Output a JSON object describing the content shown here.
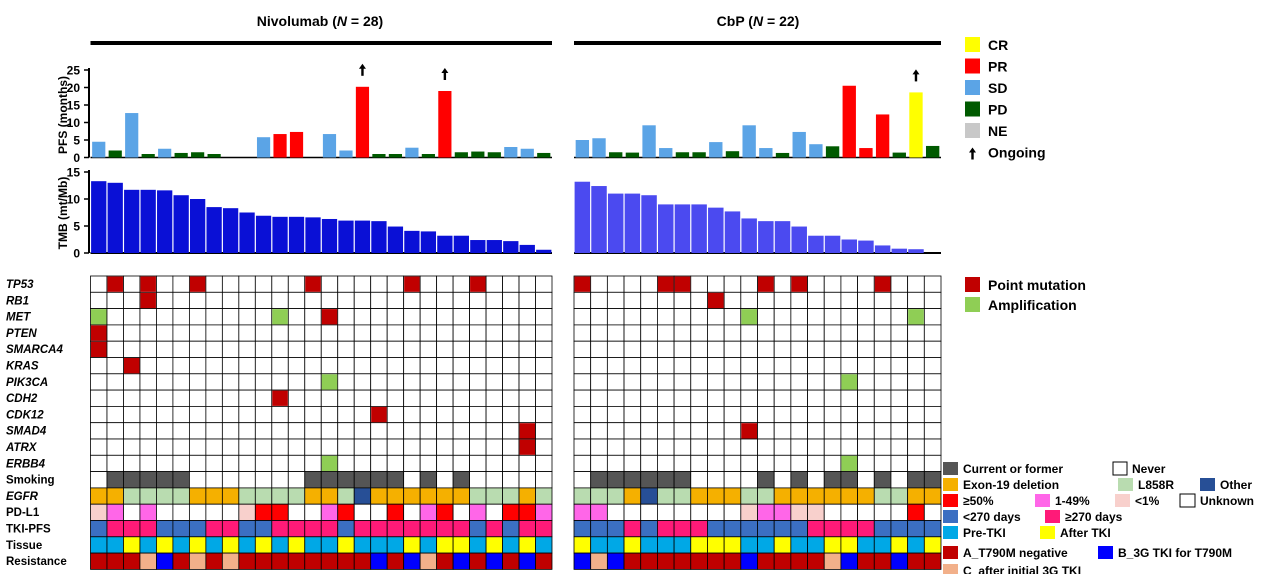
{
  "chart_data": {
    "type": "bar",
    "groups": [
      {
        "label_prefix": "Nivolumab (",
        "n_label": "N",
        "n_value": " = 28)",
        "n": 28
      },
      {
        "label_prefix": "CbP (",
        "n_label": "N",
        "n_value": " = 22)",
        "n": 22
      }
    ],
    "pfs_axis": {
      "label": "PFS (months)",
      "ticks": [
        "0",
        "5",
        "10",
        "15",
        "20",
        "25"
      ],
      "ylim": [
        0,
        25
      ]
    },
    "tmb_axis": {
      "label": "TMB (mt/Mb)",
      "ticks": [
        "0",
        "5",
        "10",
        "15"
      ],
      "ylim": [
        0,
        15
      ]
    },
    "pfs": [
      [
        4.5,
        2,
        12.7,
        1,
        2.5,
        1.3,
        1.5,
        1,
        0,
        0,
        5.8,
        6.7,
        7.3,
        0,
        6.7,
        2,
        20.2,
        1,
        1,
        2.8,
        1,
        19,
        1.5,
        1.7,
        1.5,
        3,
        2.5,
        1.3
      ],
      [
        5,
        5.5,
        1.5,
        1.4,
        9.2,
        2.7,
        1.5,
        1.5,
        4.4,
        1.8,
        9.2,
        2.7,
        1.3,
        7.3,
        3.8,
        3.2,
        20.5,
        2.7,
        12.3,
        1.4,
        18.6,
        3.3
      ]
    ],
    "response": [
      [
        "SD",
        "PD",
        "SD",
        "PD",
        "SD",
        "PD",
        "PD",
        "PD",
        "NE",
        "NE",
        "SD",
        "PR",
        "PR",
        "NE",
        "SD",
        "SD",
        "PR",
        "PD",
        "PD",
        "SD",
        "PD",
        "PR",
        "PD",
        "PD",
        "PD",
        "SD",
        "SD",
        "PD"
      ],
      [
        "SD",
        "SD",
        "PD",
        "PD",
        "SD",
        "SD",
        "PD",
        "PD",
        "SD",
        "PD",
        "SD",
        "SD",
        "PD",
        "SD",
        "SD",
        "PD",
        "PR",
        "PR",
        "PR",
        "PD",
        "CR",
        "PD"
      ]
    ],
    "ongoing": [
      [
        16,
        21
      ],
      [
        20
      ]
    ],
    "tmb": [
      [
        13.3,
        13,
        11.7,
        11.7,
        11.6,
        10.7,
        10,
        8.5,
        8.3,
        7.5,
        6.9,
        6.7,
        6.7,
        6.6,
        6.3,
        6,
        6,
        5.9,
        4.9,
        4.1,
        4,
        3.2,
        3.2,
        2.4,
        2.4,
        2.2,
        1.5,
        0.6
      ],
      [
        13.2,
        12.4,
        11,
        11,
        10.7,
        9,
        9,
        9,
        8.4,
        7.7,
        6.4,
        5.9,
        5.9,
        4.9,
        3.2,
        3.2,
        2.5,
        2.3,
        1.4,
        0.8,
        0.7,
        0
      ]
    ],
    "gene_rows": [
      "TP53",
      "RB1",
      "MET",
      "PTEN",
      "SMARCA4",
      "KRAS",
      "PIK3CA",
      "CDH2",
      "CDK12",
      "SMAD4",
      "ATRX",
      "ERBB4"
    ],
    "mutations": [
      [
        [
          0,
          1,
          "P"
        ],
        [
          0,
          3,
          "P"
        ],
        [
          0,
          6,
          "P"
        ],
        [
          0,
          13,
          "P"
        ],
        [
          0,
          19,
          "P"
        ],
        [
          0,
          23,
          "P"
        ],
        [
          1,
          3,
          "P"
        ],
        [
          2,
          0,
          "A"
        ],
        [
          2,
          11,
          "A"
        ],
        [
          2,
          14,
          "P"
        ],
        [
          3,
          0,
          "P"
        ],
        [
          4,
          0,
          "P"
        ],
        [
          5,
          2,
          "P"
        ],
        [
          6,
          14,
          "A"
        ],
        [
          7,
          11,
          "P"
        ],
        [
          8,
          17,
          "P"
        ],
        [
          9,
          26,
          "P"
        ],
        [
          10,
          26,
          "P"
        ],
        [
          11,
          14,
          "A"
        ]
      ],
      [
        [
          0,
          0,
          "P"
        ],
        [
          0,
          5,
          "P"
        ],
        [
          0,
          6,
          "P"
        ],
        [
          0,
          11,
          "P"
        ],
        [
          0,
          13,
          "P"
        ],
        [
          0,
          18,
          "P"
        ],
        [
          1,
          8,
          "P"
        ],
        [
          2,
          10,
          "A"
        ],
        [
          2,
          20,
          "A"
        ],
        [
          6,
          16,
          "A"
        ],
        [
          9,
          10,
          "P"
        ],
        [
          11,
          16,
          "A"
        ]
      ]
    ],
    "annotation_rows": [
      "Smoking",
      "EGFR",
      "PD-L1",
      "TKI-PFS",
      "Tissue",
      "Resistance"
    ],
    "annotations": [
      {
        "smoking": "NCCCCCNNNNNNNCCCCCCNCNCNNNNN",
        "egfr": "EELLLLEEELLLLEELOEEEEEELLLEL",
        "pdl1": "LMUMUUUUULHHUUMHUUHUMHUMUHHM",
        "tki": "ABBBAAABBAABBBBABBBBBBBABABB",
        "tissue": "PPAPAPAPAPAPAPPAPPPAPAAPAPAP",
        "resistance": "AAACBACACAAAAAAAABABCABABABA"
      },
      {
        "smoking": "NCCCCCCNNNNCNCNCCNCNCC",
        "egfr": "LLLEOLLEEELLEEEEEELLEE",
        "pdl1": "MMUUUUUUUULMMLLUUUUUHU",
        "tki": "AAABABBBAAAAAABBBBAAAA",
        "tissue": "APPAPPPAAAPPAPPAAPPAPA",
        "resistance": "BCBAAAAAAABAAAACBAABAA"
      }
    ],
    "colors": {
      "CR": "#ffff00",
      "PR": "#ff0000",
      "SD": "#5ba4e6",
      "PD": "#005a00",
      "NE": "#c8c8c8",
      "nivo_tmb": "#0a10d6",
      "cbp_tmb": "#4b4af0",
      "point": "#c00000",
      "amp": "#8fce55",
      "smoke_current": "#555555",
      "never": "#ffffff",
      "egfr_exon19": "#f5b000",
      "egfr_l858r": "#b9dcb0",
      "egfr_other": "#274f96",
      "pdl1_hi": "#ff0000",
      "pdl1_mid": "#ff66e8",
      "pdl1_low": "#f8d0cc",
      "pdl1_unknown": "#ffffff",
      "tki_lt270": "#3b6fc2",
      "tki_gt270": "#ff1a78",
      "tissue_pre": "#00a8e6",
      "tissue_after": "#ffff00",
      "res_a": "#c00000",
      "res_b": "#0000ff",
      "res_c": "#f2b08a"
    },
    "legend_top": [
      {
        "key": "CR",
        "label": "CR"
      },
      {
        "key": "PR",
        "label": "PR"
      },
      {
        "key": "SD",
        "label": "SD"
      },
      {
        "key": "PD",
        "label": "PD"
      },
      {
        "key": "NE",
        "label": "NE"
      }
    ],
    "ongoing_label": "Ongoing",
    "legend_mut": [
      {
        "key": "point",
        "label": "Point mutation"
      },
      {
        "key": "amp",
        "label": "Amplification"
      }
    ],
    "legend_annot": {
      "smoking": [
        {
          "key": "smoke_current",
          "label": "Current or former"
        },
        {
          "key": "never",
          "label": "Never"
        }
      ],
      "egfr": [
        {
          "key": "egfr_exon19",
          "label": "Exon-19 deletion"
        },
        {
          "key": "egfr_l858r",
          "label": "L858R"
        },
        {
          "key": "egfr_other",
          "label": "Other"
        }
      ],
      "pdl1": [
        {
          "key": "pdl1_hi",
          "label": "≥50%"
        },
        {
          "key": "pdl1_mid",
          "label": "1-49%"
        },
        {
          "key": "pdl1_low",
          "label": "<1%"
        },
        {
          "key": "pdl1_unknown",
          "label": "Unknown"
        }
      ],
      "tki": [
        {
          "key": "tki_lt270",
          "label": "<270 days"
        },
        {
          "key": "tki_gt270",
          "label": "≥270 days"
        }
      ],
      "tissue": [
        {
          "key": "tissue_pre",
          "label": "Pre-TKI"
        },
        {
          "key": "tissue_after",
          "label": "After TKI"
        }
      ],
      "resistance": [
        {
          "key": "res_a",
          "label": "A_T790M negative"
        },
        {
          "key": "res_b",
          "label": "B_3G TKI for T790M"
        },
        {
          "key": "res_c",
          "label": "C_after initial 3G TKI"
        }
      ]
    }
  }
}
